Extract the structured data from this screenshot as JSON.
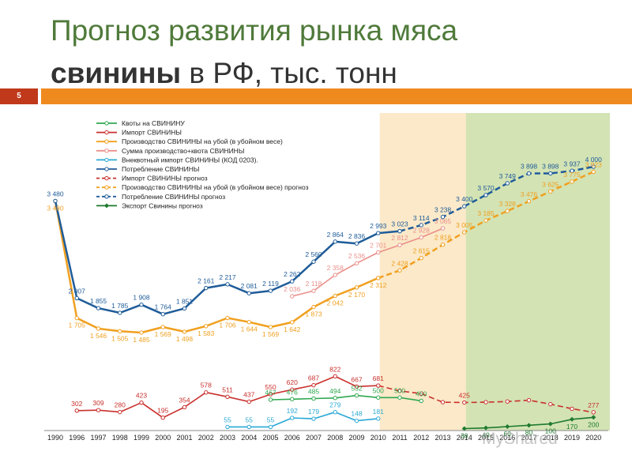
{
  "slide": {
    "title_line1": "Прогноз развития рынка мяса",
    "title_bold": "свинины",
    "title_rest": " в РФ, тыс. тонн",
    "number": "5",
    "watermark": "MyShared"
  },
  "colors": {
    "red_box": "#c0391b",
    "orange_bar": "#ef8a1e",
    "title_green": "#4f7a3a"
  },
  "chart_data": {
    "type": "line",
    "title": "",
    "xlabel": "",
    "ylabel": "",
    "categories": [
      "1990",
      "1996",
      "1997",
      "1998",
      "1999",
      "2000",
      "2001",
      "2002",
      "2003",
      "2004",
      "2005",
      "2006",
      "2007",
      "2008",
      "2009",
      "2010",
      "2011",
      "2012",
      "2013",
      "2014",
      "2015",
      "2016",
      "2017",
      "2018",
      "2019",
      "2020"
    ],
    "legend_position": "top-left",
    "shaded_regions": [
      {
        "from": "2010",
        "to": "2014",
        "color": "#fbe9c9"
      },
      {
        "from": "2014",
        "to": "2020",
        "color": "#d3e3b4"
      }
    ],
    "series": [
      {
        "name": "Квоты на СВИНИНУ",
        "color": "#2fa84f",
        "style": "solid",
        "marker": "circle",
        "points": [
          [
            "2005",
            467
          ],
          [
            "2006",
            476
          ],
          [
            "2007",
            485
          ],
          [
            "2008",
            494
          ],
          [
            "2009",
            532
          ],
          [
            "2010",
            500
          ],
          [
            "2011",
            500
          ],
          [
            "2012",
            450
          ]
        ]
      },
      {
        "name": "Импорт СВИНИНЫ",
        "color": "#c9302c",
        "style": "solid",
        "marker": "circle",
        "points": [
          [
            "1996",
            302
          ],
          [
            "1997",
            309
          ],
          [
            "1998",
            280
          ],
          [
            "1999",
            423
          ],
          [
            "2000",
            195
          ],
          [
            "2001",
            354
          ],
          [
            "2002",
            578
          ],
          [
            "2003",
            511
          ],
          [
            "2004",
            437
          ],
          [
            "2005",
            550
          ],
          [
            "2006",
            620
          ],
          [
            "2007",
            687
          ],
          [
            "2008",
            822
          ],
          [
            "2009",
            667
          ],
          [
            "2010",
            681
          ]
        ]
      },
      {
        "name": "Производство СВИНИНЫ  на убой (в убойном весе)",
        "color": "#f0a020",
        "style": "solid",
        "marker": "circle",
        "points": [
          [
            "1990",
            3480
          ],
          [
            "1996",
            1705
          ],
          [
            "1997",
            1546
          ],
          [
            "1998",
            1505
          ],
          [
            "1999",
            1485
          ],
          [
            "2000",
            1569
          ],
          [
            "2001",
            1498
          ],
          [
            "2002",
            1583
          ],
          [
            "2003",
            1706
          ],
          [
            "2004",
            1644
          ],
          [
            "2005",
            1569
          ],
          [
            "2006",
            1642
          ],
          [
            "2007",
            1873
          ],
          [
            "2008",
            2042
          ],
          [
            "2009",
            2170
          ],
          [
            "2010",
            2312
          ]
        ]
      },
      {
        "name": "Сумма производство+квота СВИНИНЫ",
        "color": "#ea8f8a",
        "style": "solid",
        "marker": "circle",
        "points": [
          [
            "2006",
            2036
          ],
          [
            "2007",
            2118
          ],
          [
            "2008",
            2358
          ],
          [
            "2009",
            2536
          ],
          [
            "2010",
            2701
          ],
          [
            "2011",
            2812
          ],
          [
            "2012",
            2928
          ],
          [
            "2013",
            3065
          ]
        ]
      },
      {
        "name": "Внеквотный импорт СВИНИНЫ  (КОД 0203).",
        "color": "#2aa9d6",
        "style": "solid",
        "marker": "circle",
        "points": [
          [
            "2003",
            55
          ],
          [
            "2004",
            55
          ],
          [
            "2005",
            55
          ],
          [
            "2006",
            192
          ],
          [
            "2007",
            179
          ],
          [
            "2008",
            279
          ],
          [
            "2009",
            148
          ],
          [
            "2010",
            181
          ]
        ]
      },
      {
        "name": "Потребление СВИНИНЫ",
        "color": "#1f5c99",
        "style": "solid",
        "marker": "circle",
        "points": [
          [
            "1990",
            3480
          ],
          [
            "1996",
            2007
          ],
          [
            "1997",
            1855
          ],
          [
            "1998",
            1785
          ],
          [
            "1999",
            1908
          ],
          [
            "2000",
            1764
          ],
          [
            "2001",
            1851
          ],
          [
            "2002",
            2161
          ],
          [
            "2003",
            2217
          ],
          [
            "2004",
            2081
          ],
          [
            "2005",
            2119
          ],
          [
            "2006",
            2262
          ],
          [
            "2007",
            2560
          ],
          [
            "2008",
            2864
          ],
          [
            "2009",
            2836
          ],
          [
            "2010",
            2993
          ],
          [
            "2011",
            3023
          ]
        ]
      },
      {
        "name": "Импорт СВИНИНЫ прогноз",
        "color": "#c9302c",
        "style": "dashed",
        "marker": "circle",
        "points": [
          [
            "2010",
            681
          ],
          [
            "2011",
            600
          ],
          [
            "2012",
            560
          ],
          [
            "2013",
            430
          ],
          [
            "2014",
            425
          ],
          [
            "2015",
            430
          ],
          [
            "2016",
            440
          ],
          [
            "2017",
            460
          ],
          [
            "2018",
            400
          ],
          [
            "2019",
            330
          ],
          [
            "2020",
            277
          ]
        ]
      },
      {
        "name": "Производство СВИНИНЫ  на убой (в убойном весе) прогноз",
        "color": "#f0a020",
        "style": "dashed",
        "marker": "circle",
        "points": [
          [
            "2010",
            2312
          ],
          [
            "2011",
            2428
          ],
          [
            "2012",
            2615
          ],
          [
            "2013",
            2818
          ],
          [
            "2014",
            3005
          ],
          [
            "2015",
            3185
          ],
          [
            "2016",
            3328
          ],
          [
            "2017",
            3476
          ],
          [
            "2018",
            3625
          ],
          [
            "2019",
            3775
          ],
          [
            "2020",
            3923
          ]
        ]
      },
      {
        "name": "Потребление СВИНИНЫ прогноз",
        "color": "#1f5c99",
        "style": "dashed",
        "marker": "circle",
        "points": [
          [
            "2011",
            3023
          ],
          [
            "2012",
            3114
          ],
          [
            "2013",
            3238
          ],
          [
            "2014",
            3400
          ],
          [
            "2015",
            3570
          ],
          [
            "2016",
            3749
          ],
          [
            "2017",
            3898
          ],
          [
            "2018",
            3898
          ],
          [
            "2019",
            3937
          ],
          [
            "2020",
            4000
          ]
        ]
      },
      {
        "name": "Экспорт Свинины прогноз",
        "color": "#1e7a2e",
        "style": "solid",
        "marker": "diamond",
        "points": [
          [
            "2014",
            30
          ],
          [
            "2015",
            40
          ],
          [
            "2016",
            60
          ],
          [
            "2017",
            80
          ],
          [
            "2018",
            100
          ],
          [
            "2019",
            170
          ],
          [
            "2020",
            200
          ]
        ]
      }
    ],
    "data_labels": [
      {
        "series": 0,
        "x": "2005",
        "text": "467"
      },
      {
        "series": 0,
        "x": "2006",
        "text": "476"
      },
      {
        "series": 0,
        "x": "2007",
        "text": "485"
      },
      {
        "series": 0,
        "x": "2008",
        "text": "494"
      },
      {
        "series": 0,
        "x": "2009",
        "text": "532"
      },
      {
        "series": 0,
        "x": "2010",
        "text": "500"
      },
      {
        "series": 0,
        "x": "2011",
        "text": "500"
      },
      {
        "series": 0,
        "x": "2012",
        "text": "450"
      },
      {
        "series": 1,
        "x": "1996",
        "text": "302"
      },
      {
        "series": 1,
        "x": "1997",
        "text": "309"
      },
      {
        "series": 1,
        "x": "1998",
        "text": "280"
      },
      {
        "series": 1,
        "x": "1999",
        "text": "423"
      },
      {
        "series": 1,
        "x": "2000",
        "text": "195"
      },
      {
        "series": 1,
        "x": "2001",
        "text": "354"
      },
      {
        "series": 1,
        "x": "2002",
        "text": "578"
      },
      {
        "series": 1,
        "x": "2003",
        "text": "511"
      },
      {
        "series": 1,
        "x": "2004",
        "text": "437"
      },
      {
        "series": 1,
        "x": "2005",
        "text": "550"
      },
      {
        "series": 1,
        "x": "2006",
        "text": "620"
      },
      {
        "series": 1,
        "x": "2007",
        "text": "687"
      },
      {
        "series": 1,
        "x": "2008",
        "text": "822"
      },
      {
        "series": 1,
        "x": "2009",
        "text": "667"
      },
      {
        "series": 1,
        "x": "2010",
        "text": "681"
      },
      {
        "series": 2,
        "x": "1990",
        "text": "3 480"
      },
      {
        "series": 2,
        "x": "1996",
        "text": "1 705"
      },
      {
        "series": 2,
        "x": "1997",
        "text": "1 546"
      },
      {
        "series": 2,
        "x": "1998",
        "text": "1 505"
      },
      {
        "series": 2,
        "x": "1999",
        "text": "1 485"
      },
      {
        "series": 2,
        "x": "2000",
        "text": "1 569"
      },
      {
        "series": 2,
        "x": "2001",
        "text": "1 498"
      },
      {
        "series": 2,
        "x": "2002",
        "text": "1 583"
      },
      {
        "series": 2,
        "x": "2003",
        "text": "1 706"
      },
      {
        "series": 2,
        "x": "2004",
        "text": "1 644"
      },
      {
        "series": 2,
        "x": "2005",
        "text": "1 569"
      },
      {
        "series": 2,
        "x": "2006",
        "text": "1 642"
      },
      {
        "series": 2,
        "x": "2007",
        "text": "1 873"
      },
      {
        "series": 2,
        "x": "2008",
        "text": "2 042"
      },
      {
        "series": 2,
        "x": "2009",
        "text": "2 170"
      },
      {
        "series": 2,
        "x": "2010",
        "text": "2 312"
      },
      {
        "series": 3,
        "x": "2006",
        "text": "2 036"
      },
      {
        "series": 3,
        "x": "2007",
        "text": "2 118"
      },
      {
        "series": 3,
        "x": "2008",
        "text": "2 358"
      },
      {
        "series": 3,
        "x": "2009",
        "text": "2 536"
      },
      {
        "series": 3,
        "x": "2010",
        "text": "2 701"
      },
      {
        "series": 3,
        "x": "2011",
        "text": "2 812"
      },
      {
        "series": 3,
        "x": "2012",
        "text": "2 928"
      },
      {
        "series": 3,
        "x": "2013",
        "text": "3 065"
      },
      {
        "series": 4,
        "x": "2003",
        "text": "55"
      },
      {
        "series": 4,
        "x": "2004",
        "text": "55"
      },
      {
        "series": 4,
        "x": "2005",
        "text": "55"
      },
      {
        "series": 4,
        "x": "2006",
        "text": "192"
      },
      {
        "series": 4,
        "x": "2007",
        "text": "179"
      },
      {
        "series": 4,
        "x": "2008",
        "text": "279"
      },
      {
        "series": 4,
        "x": "2009",
        "text": "148"
      },
      {
        "series": 4,
        "x": "2010",
        "text": "181"
      },
      {
        "series": 5,
        "x": "1990",
        "text": "3 480"
      },
      {
        "series": 5,
        "x": "1996",
        "text": "2 007"
      },
      {
        "series": 5,
        "x": "1997",
        "text": "1 855"
      },
      {
        "series": 5,
        "x": "1998",
        "text": "1 785"
      },
      {
        "series": 5,
        "x": "1999",
        "text": "1 908"
      },
      {
        "series": 5,
        "x": "2000",
        "text": "1 764"
      },
      {
        "series": 5,
        "x": "2001",
        "text": "1 851"
      },
      {
        "series": 5,
        "x": "2002",
        "text": "2 161"
      },
      {
        "series": 5,
        "x": "2003",
        "text": "2 217"
      },
      {
        "series": 5,
        "x": "2004",
        "text": "2 081"
      },
      {
        "series": 5,
        "x": "2005",
        "text": "2 119"
      },
      {
        "series": 5,
        "x": "2006",
        "text": "2 262"
      },
      {
        "series": 5,
        "x": "2007",
        "text": "2 560"
      },
      {
        "series": 5,
        "x": "2008",
        "text": "2 864"
      },
      {
        "series": 5,
        "x": "2009",
        "text": "2 836"
      },
      {
        "series": 5,
        "x": "2010",
        "text": "2 993"
      },
      {
        "series": 5,
        "x": "2011",
        "text": "3 023"
      },
      {
        "series": 6,
        "x": "2014",
        "text": "425"
      },
      {
        "series": 6,
        "x": "2020",
        "text": "277"
      },
      {
        "series": 7,
        "x": "2011",
        "text": "2 428"
      },
      {
        "series": 7,
        "x": "2012",
        "text": "2 615"
      },
      {
        "series": 7,
        "x": "2013",
        "text": "2 818"
      },
      {
        "series": 7,
        "x": "2014",
        "text": "3 005"
      },
      {
        "series": 7,
        "x": "2015",
        "text": "3 185"
      },
      {
        "series": 7,
        "x": "2016",
        "text": "3 328"
      },
      {
        "series": 7,
        "x": "2017",
        "text": "3 476"
      },
      {
        "series": 7,
        "x": "2018",
        "text": "3 625"
      },
      {
        "series": 7,
        "x": "2019",
        "text": "3 775"
      },
      {
        "series": 7,
        "x": "2020",
        "text": "3 923"
      },
      {
        "series": 8,
        "x": "2012",
        "text": "3 114"
      },
      {
        "series": 8,
        "x": "2013",
        "text": "3 238"
      },
      {
        "series": 8,
        "x": "2014",
        "text": "3 400"
      },
      {
        "series": 8,
        "x": "2015",
        "text": "3 570"
      },
      {
        "series": 8,
        "x": "2016",
        "text": "3 749"
      },
      {
        "series": 8,
        "x": "2017",
        "text": "3 898"
      },
      {
        "series": 8,
        "x": "2018",
        "text": "3 898"
      },
      {
        "series": 8,
        "x": "2019",
        "text": "3 937"
      },
      {
        "series": 8,
        "x": "2020",
        "text": "4 000"
      },
      {
        "series": 9,
        "x": "2014",
        "text": "30"
      },
      {
        "series": 9,
        "x": "2015",
        "text": "40"
      },
      {
        "series": 9,
        "x": "2016",
        "text": "60"
      },
      {
        "series": 9,
        "x": "2017",
        "text": "80"
      },
      {
        "series": 9,
        "x": "2018",
        "text": "100"
      },
      {
        "series": 9,
        "x": "2019",
        "text": "170"
      },
      {
        "series": 9,
        "x": "2020",
        "text": "200"
      }
    ]
  }
}
